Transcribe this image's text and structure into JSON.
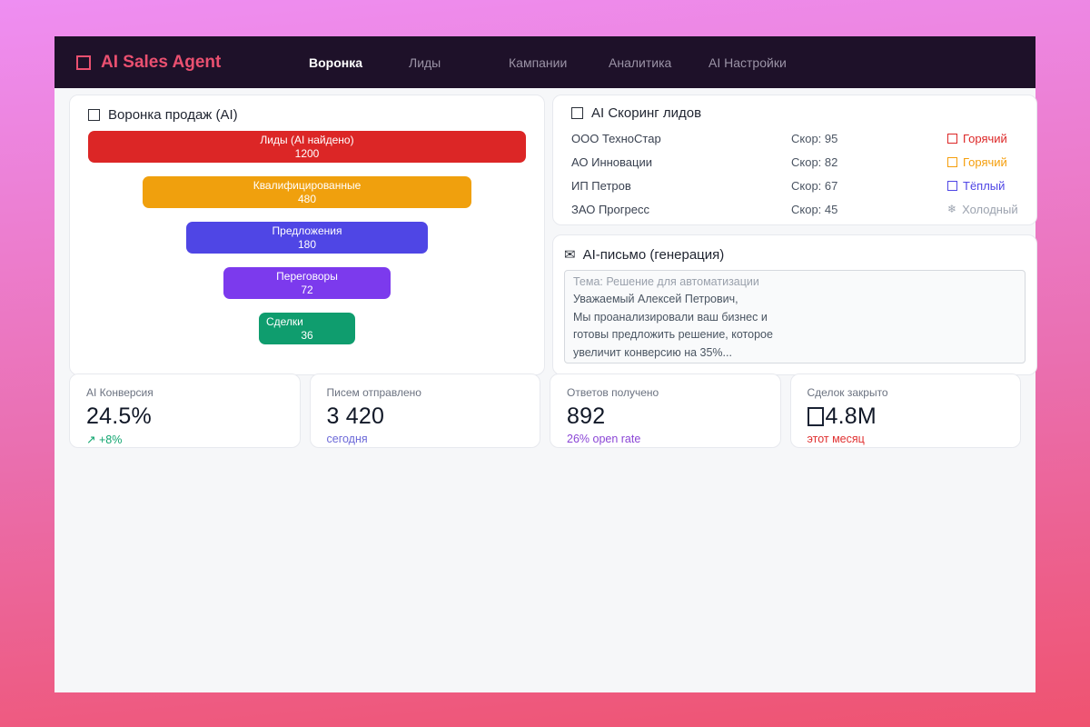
{
  "header": {
    "logo_text": "AI Sales Agent",
    "nav": [
      {
        "label": "Воронка",
        "active": true
      },
      {
        "label": "Лиды",
        "active": false
      },
      {
        "label": "Кампании",
        "active": false
      },
      {
        "label": "Аналитика",
        "active": false
      },
      {
        "label": "AI Настройки",
        "active": false
      }
    ]
  },
  "funnel": {
    "title": "Воронка продаж (AI)",
    "stages": [
      {
        "label": "Лиды (AI найдено)",
        "value": "1200",
        "color": "#dc2626",
        "width_pct": 100
      },
      {
        "label": "Квалифицированные",
        "value": "480",
        "color": "#f0a00d",
        "width_pct": 75
      },
      {
        "label": "Предложения",
        "value": "180",
        "color": "#4f46e5",
        "width_pct": 55
      },
      {
        "label": "Переговоры",
        "value": "72",
        "color": "#7c3aed",
        "width_pct": 38
      },
      {
        "label": "Сделки",
        "value": "36",
        "color": "#0f9d6e",
        "width_pct": 22
      }
    ]
  },
  "scoring": {
    "title": "AI Скоринг лидов",
    "leads": [
      {
        "company": "ООО ТехноСтар",
        "score": "Скор: 95",
        "status": "Горячий",
        "color": "#dc2626",
        "icon": "missing-glyph-box"
      },
      {
        "company": "АО Инновации",
        "score": "Скор: 82",
        "status": "Горячий",
        "color": "#f59e0b",
        "icon": "missing-glyph-box"
      },
      {
        "company": "ИП Петров",
        "score": "Скор: 67",
        "status": "Тёплый",
        "color": "#4f46e5",
        "icon": "missing-glyph-box"
      },
      {
        "company": "ЗАО Прогресс",
        "score": "Скор: 45",
        "status": "Холодный",
        "color": "#9ca3af",
        "icon_glyph": "❄"
      }
    ]
  },
  "email": {
    "title": "AI-письмо (генерация)",
    "title_icon": "✉",
    "lines": [
      "Тема: Решение для автоматизации",
      "Уважаемый Алексей Петрович,",
      "Мы проанализировали ваш бизнес и",
      "готовы предложить решение, которое",
      "увеличит конверсию на 35%..."
    ]
  },
  "stats": [
    {
      "label": "AI Конверсия",
      "value": "24.5%",
      "trend_icon": "↗",
      "sub": "+8%",
      "sub_color": "#10a56f"
    },
    {
      "label": "Писем отправлено",
      "value": "3 420",
      "sub": "сегодня",
      "sub_color": "#6c69d8"
    },
    {
      "label": "Ответов получено",
      "value": "892",
      "sub": "26% open rate",
      "sub_color": "#8b46d6"
    },
    {
      "label": "Сделок закрыто",
      "value": "4.8M",
      "sub": "этот месяц",
      "sub_color": "#e03131",
      "currency_icon": "missing-glyph-box"
    }
  ],
  "chart_data": {
    "type": "bar",
    "subtype": "funnel",
    "title": "Воронка продаж (AI)",
    "categories": [
      "Лиды (AI найдено)",
      "Квалифицированные",
      "Предложения",
      "Переговоры",
      "Сделки"
    ],
    "values": [
      1200,
      480,
      180,
      72,
      36
    ],
    "colors": [
      "#dc2626",
      "#f0a00d",
      "#4f46e5",
      "#7c3aed",
      "#0f9d6e"
    ],
    "orientation": "horizontal-centered"
  }
}
